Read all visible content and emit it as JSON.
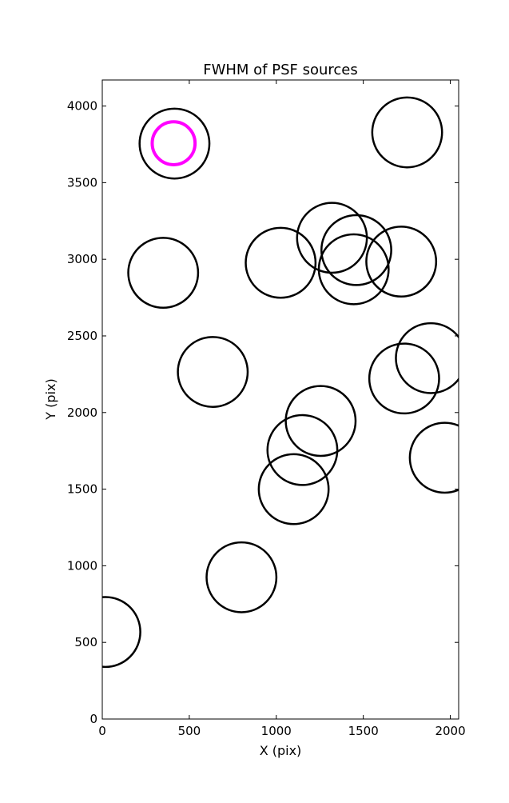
{
  "chart_data": {
    "type": "scatter",
    "title": "FWHM of PSF sources",
    "xlabel": "X (pix)",
    "ylabel": "Y (pix)",
    "xlim": [
      0,
      2048
    ],
    "ylim": [
      0,
      4170
    ],
    "xticks": [
      0,
      500,
      1000,
      1500,
      2000
    ],
    "yticks": [
      0,
      500,
      1000,
      1500,
      2000,
      2500,
      3000,
      3500,
      4000
    ],
    "grid": false,
    "sources": [
      {
        "x": 415,
        "y": 3755,
        "r": 228
      },
      {
        "x": 1752,
        "y": 3828,
        "r": 228
      },
      {
        "x": 350,
        "y": 2912,
        "r": 228
      },
      {
        "x": 1025,
        "y": 2977,
        "r": 228
      },
      {
        "x": 1320,
        "y": 3140,
        "r": 228
      },
      {
        "x": 1460,
        "y": 3060,
        "r": 228
      },
      {
        "x": 1445,
        "y": 2935,
        "r": 228
      },
      {
        "x": 1718,
        "y": 2985,
        "r": 228
      },
      {
        "x": 635,
        "y": 2265,
        "r": 228
      },
      {
        "x": 1888,
        "y": 2355,
        "r": 228
      },
      {
        "x": 1735,
        "y": 2222,
        "r": 228
      },
      {
        "x": 1255,
        "y": 1945,
        "r": 228
      },
      {
        "x": 1150,
        "y": 1755,
        "r": 228
      },
      {
        "x": 1968,
        "y": 1705,
        "r": 228
      },
      {
        "x": 1100,
        "y": 1500,
        "r": 228
      },
      {
        "x": 800,
        "y": 925,
        "r": 228
      },
      {
        "x": 18,
        "y": 568,
        "r": 228
      }
    ],
    "highlight": {
      "x": 410,
      "y": 3757,
      "r": 140
    },
    "colors": {
      "source": "#000000",
      "highlight": "#ff00ff",
      "axes": "#000000",
      "background": "#ffffff"
    }
  }
}
